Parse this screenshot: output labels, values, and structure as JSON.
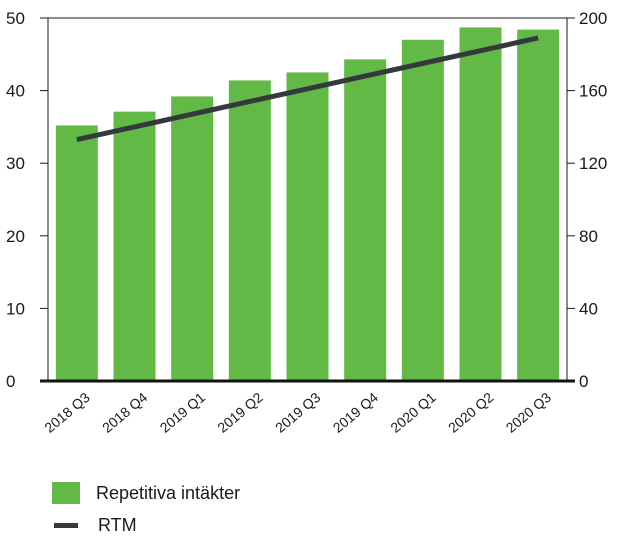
{
  "chart_data": {
    "type": "bar",
    "categories": [
      "2018 Q3",
      "2018 Q4",
      "2019 Q1",
      "2019 Q2",
      "2019 Q3",
      "2019 Q4",
      "2020 Q1",
      "2020 Q2",
      "2020 Q3"
    ],
    "series": [
      {
        "name": "Repetitiva intäkter",
        "type": "bar",
        "axis": "left",
        "color": "#62b946",
        "values": [
          35.2,
          37.1,
          39.2,
          41.4,
          42.5,
          44.3,
          47.0,
          48.7,
          48.4
        ]
      },
      {
        "name": "RTM",
        "type": "line",
        "axis": "right",
        "color": "#333a3e",
        "values": [
          133,
          140,
          147,
          154,
          161,
          168,
          175,
          182,
          189
        ]
      }
    ],
    "y_left": {
      "ylim": [
        0,
        50
      ],
      "ticks": [
        0,
        10,
        20,
        30,
        40,
        50
      ]
    },
    "y_right": {
      "ylim": [
        0,
        200
      ],
      "ticks": [
        0,
        40,
        80,
        120,
        160,
        200
      ]
    },
    "grid": false,
    "legend_position": "bottom-left"
  },
  "legend": {
    "bar_label": "Repetitiva intäkter",
    "line_label": "RTM"
  }
}
